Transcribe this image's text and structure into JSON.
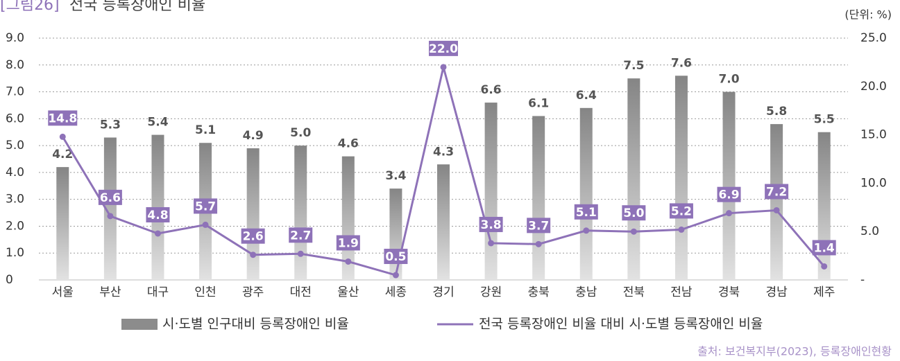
{
  "chart_data": {
    "type": "bar-line",
    "figure_label": "[그림26]",
    "title": "전국 등록장애인 비율",
    "unit": "(단위: %)",
    "source": "출처: 보건복지부(2023), 등록장애인현황",
    "categories": [
      "서울",
      "부산",
      "대구",
      "인천",
      "광주",
      "대전",
      "울산",
      "세종",
      "경기",
      "강원",
      "충북",
      "충남",
      "전북",
      "전남",
      "경북",
      "경남",
      "제주"
    ],
    "series": [
      {
        "name": "시·도별 인구대비 등록장애인 비율",
        "type": "bar",
        "color": "#8c8c8c",
        "values": [
          4.2,
          5.3,
          5.4,
          5.1,
          4.9,
          5.0,
          4.6,
          3.4,
          4.3,
          6.6,
          6.1,
          6.4,
          7.5,
          7.6,
          7.0,
          5.8,
          5.5
        ],
        "value_labels": [
          "4.2",
          "5.3",
          "5.4",
          "5.1",
          "4.9",
          "5.0",
          "4.6",
          "3.4",
          "4.3",
          "6.6",
          "6.1",
          "6.4",
          "7.5",
          "7.6",
          "7.0",
          "5.8",
          "5.5"
        ]
      },
      {
        "name": "전국 등록장애인 비율 대비 시·도별 등록장애인 비율",
        "type": "line",
        "axis": "y2",
        "color": "#8e72b8",
        "values": [
          14.8,
          6.6,
          4.8,
          5.7,
          2.6,
          2.7,
          1.9,
          0.5,
          22.0,
          3.8,
          3.7,
          5.1,
          5.0,
          5.2,
          6.9,
          7.2,
          1.4
        ],
        "value_labels": [
          "14.8",
          "6.6",
          "4.8",
          "5.7",
          "2.6",
          "2.7",
          "1.9",
          "0.5",
          "22.0",
          "3.8",
          "3.7",
          "5.1",
          "5.0",
          "5.2",
          "6.9",
          "7.2",
          "1.4"
        ]
      }
    ],
    "ylim": [
      0,
      9
    ],
    "yticks": [
      0,
      {
        "value": 1,
        "label": "1.0"
      },
      {
        "value": 2,
        "label": "2.0"
      },
      {
        "value": 3,
        "label": "3.0"
      },
      {
        "value": 4,
        "label": "4.0"
      },
      {
        "value": 5,
        "label": "5.0"
      },
      {
        "value": 6,
        "label": "6.0"
      },
      {
        "value": 7,
        "label": "7.0"
      },
      {
        "value": 8,
        "label": "8.0"
      },
      {
        "value": 9,
        "label": "9.0"
      }
    ],
    "y2lim": [
      0,
      25
    ],
    "y2ticks": [
      {
        "value": 0,
        "label": "-"
      },
      {
        "value": 5,
        "label": "5.0"
      },
      {
        "value": 10,
        "label": "10.0"
      },
      {
        "value": 15,
        "label": "15.0"
      },
      {
        "value": 20,
        "label": "20.0"
      },
      {
        "value": 25,
        "label": "25.0"
      }
    ],
    "grid": true
  }
}
